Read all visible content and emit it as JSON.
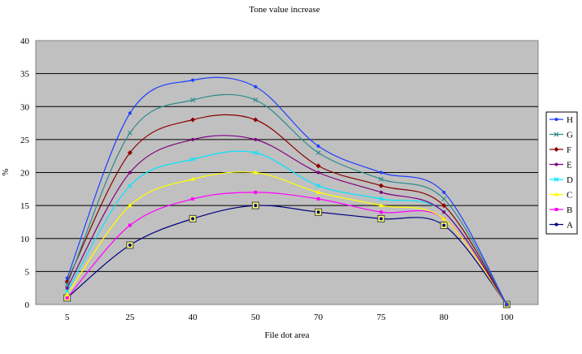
{
  "chart_data": {
    "type": "line",
    "title": "Tone value increase",
    "xlabel": "File dot area",
    "ylabel": "%",
    "categories": [
      "5",
      "25",
      "40",
      "50",
      "70",
      "75",
      "80",
      "100"
    ],
    "ylim": [
      0,
      40
    ],
    "yticks": [
      "0",
      "5",
      "10",
      "15",
      "20",
      "25",
      "30",
      "35",
      "40"
    ],
    "grid": "horizontal",
    "legend_position": "right",
    "plot_background": "#c0c0c0",
    "series": [
      {
        "name": "H",
        "color": "#1f3fff",
        "marker": "dot",
        "values": [
          4,
          29,
          34,
          33,
          24,
          20,
          17,
          0
        ]
      },
      {
        "name": "G",
        "color": "#2e8b8b",
        "marker": "cross",
        "values": [
          3,
          26,
          31,
          31,
          23,
          19,
          16,
          0
        ]
      },
      {
        "name": "F",
        "color": "#8b0000",
        "marker": "diamond",
        "values": [
          3.5,
          23,
          28,
          28,
          21,
          18,
          15,
          0
        ]
      },
      {
        "name": "E",
        "color": "#800080",
        "marker": "dot",
        "values": [
          2.5,
          20,
          25,
          25,
          20,
          17,
          14,
          0
        ]
      },
      {
        "name": "D",
        "color": "#00e5ff",
        "marker": "cross",
        "values": [
          2,
          18,
          22,
          23,
          18,
          16,
          14,
          0
        ]
      },
      {
        "name": "C",
        "color": "#ffff00",
        "marker": "triangle",
        "values": [
          1.5,
          15,
          19,
          20,
          17,
          15,
          13,
          0
        ]
      },
      {
        "name": "B",
        "color": "#ff00ff",
        "marker": "square",
        "values": [
          1,
          12,
          16,
          17,
          16,
          14,
          13,
          0
        ]
      },
      {
        "name": "A",
        "color": "#000080",
        "marker": "boxed",
        "values": [
          1,
          9,
          13,
          15,
          14,
          13,
          12,
          0
        ]
      }
    ]
  }
}
